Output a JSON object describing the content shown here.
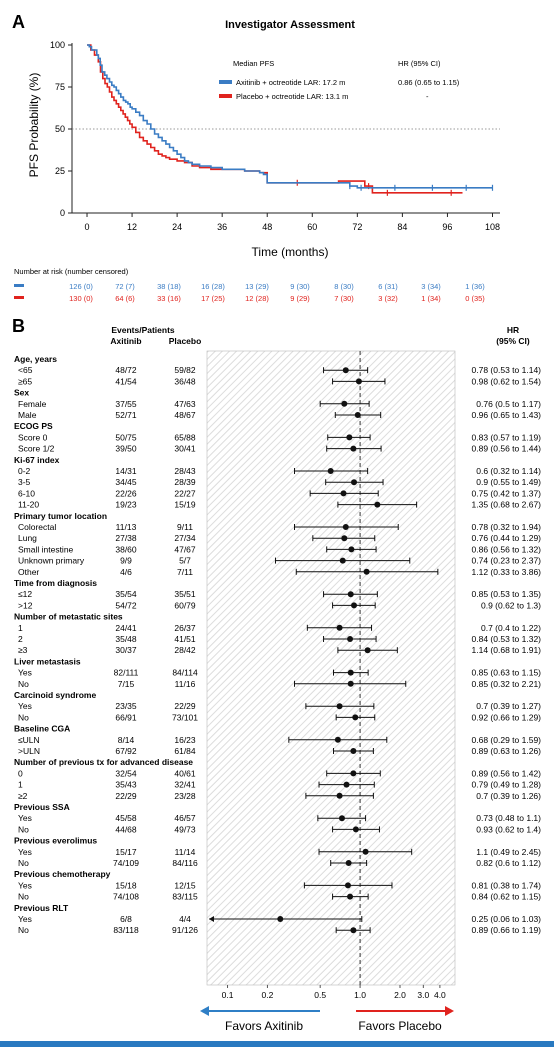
{
  "colors": {
    "axitinib": "#3a7cc4",
    "placebo": "#e0231e",
    "hatch": "#dddddd",
    "bottom_bar": "#2979c0"
  },
  "panel_a": {
    "letter": "A",
    "title": "Investigator Assessment",
    "ylabel": "PFS Probability (%)",
    "xlabel": "Time (months)",
    "legend_header": "Median PFS",
    "hr_header": "HR (95% CI)",
    "legend": [
      {
        "label": "Axitinib + octreotide LAR: 17.2 m",
        "hr": "0.86 (0.65 to 1.15)"
      },
      {
        "label": "Placebo + octreotide LAR: 13.1 m",
        "hr": "-"
      }
    ],
    "risk_title": "Number at risk (number censored)",
    "risk_axitinib": [
      "126 (0)",
      "72 (7)",
      "38 (18)",
      "16 (28)",
      "13 (29)",
      "9 (30)",
      "8 (30)",
      "6 (31)",
      "3 (34)",
      "1 (36)"
    ],
    "risk_placebo": [
      "130 (0)",
      "64 (6)",
      "33 (16)",
      "17 (25)",
      "12 (28)",
      "9 (29)",
      "7 (30)",
      "3 (32)",
      "1 (34)",
      "0 (35)"
    ]
  },
  "panel_b": {
    "letter": "B",
    "header_events": "Events/Patients",
    "header_axitinib": "Axitinib",
    "header_placebo": "Placebo",
    "header_hr": "HR",
    "header_ci": "(95% CI)",
    "favors_left": "Favors Axitinib",
    "favors_right": "Favors Placebo"
  },
  "chart_data": [
    {
      "type": "line",
      "title": "Investigator Assessment",
      "xlabel": "Time (months)",
      "ylabel": "PFS Probability (%)",
      "xlim": [
        -4,
        110
      ],
      "ylim": [
        0,
        100
      ],
      "x_ticks": [
        0,
        12,
        24,
        36,
        48,
        60,
        72,
        84,
        96,
        108
      ],
      "y_ticks": [
        0,
        25,
        50,
        75,
        100
      ],
      "reference_line": 50,
      "series": [
        {
          "name": "Axitinib + octreotide LAR: 17.2 m",
          "points": [
            [
              0,
              100
            ],
            [
              0.6,
              99
            ],
            [
              1.2,
              97
            ],
            [
              2,
              97
            ],
            [
              2.6,
              94
            ],
            [
              3,
              92
            ],
            [
              3.5,
              88
            ],
            [
              4,
              84
            ],
            [
              4.7,
              82
            ],
            [
              5.3,
              80
            ],
            [
              6,
              78
            ],
            [
              6.6,
              76
            ],
            [
              7.2,
              75
            ],
            [
              7.8,
              73
            ],
            [
              8.4,
              71
            ],
            [
              9,
              69
            ],
            [
              9.7,
              67
            ],
            [
              10.3,
              66
            ],
            [
              10.9,
              65
            ],
            [
              11.5,
              63
            ],
            [
              12,
              62
            ],
            [
              13,
              60
            ],
            [
              14,
              58
            ],
            [
              15,
              55
            ],
            [
              16,
              53
            ],
            [
              17,
              50
            ],
            [
              18,
              47
            ],
            [
              19,
              45
            ],
            [
              20,
              43
            ],
            [
              21,
              41
            ],
            [
              22,
              39
            ],
            [
              23,
              37
            ],
            [
              24,
              35
            ],
            [
              25,
              33
            ],
            [
              26,
              31
            ],
            [
              27,
              30
            ],
            [
              28,
              29
            ],
            [
              30,
              28
            ],
            [
              33,
              27
            ],
            [
              36,
              26
            ],
            [
              42,
              25
            ],
            [
              46,
              24
            ],
            [
              47,
              23
            ],
            [
              48,
              18
            ],
            [
              56,
              18
            ],
            [
              68,
              18
            ],
            [
              70,
              16
            ],
            [
              72,
              15
            ],
            [
              108,
              15
            ]
          ],
          "censor_times": [
            70,
            73,
            82,
            92,
            101,
            108
          ]
        },
        {
          "name": "Placebo + octreotide LAR: 13.1 m",
          "points": [
            [
              0,
              100
            ],
            [
              1,
              97
            ],
            [
              2,
              94
            ],
            [
              3,
              90
            ],
            [
              3.6,
              84
            ],
            [
              4.2,
              80
            ],
            [
              4.8,
              77
            ],
            [
              5.4,
              75
            ],
            [
              6,
              72
            ],
            [
              6.6,
              69
            ],
            [
              7.2,
              67
            ],
            [
              7.8,
              65
            ],
            [
              8.4,
              63
            ],
            [
              9,
              61
            ],
            [
              9.6,
              59
            ],
            [
              10.2,
              57
            ],
            [
              10.8,
              55
            ],
            [
              11.4,
              53
            ],
            [
              12,
              51
            ],
            [
              13,
              48
            ],
            [
              14,
              45
            ],
            [
              15,
              43
            ],
            [
              16,
              41
            ],
            [
              17,
              39
            ],
            [
              18,
              37
            ],
            [
              19,
              35
            ],
            [
              20,
              34
            ],
            [
              21,
              33
            ],
            [
              22,
              32
            ],
            [
              24,
              31
            ],
            [
              26,
              30
            ],
            [
              28,
              28
            ],
            [
              30,
              27
            ],
            [
              33,
              26
            ],
            [
              36,
              26
            ],
            [
              42,
              25
            ],
            [
              46,
              24
            ],
            [
              48,
              18
            ],
            [
              60,
              18
            ],
            [
              66,
              18
            ],
            [
              67,
              19
            ],
            [
              72,
              19
            ],
            [
              74,
              16
            ],
            [
              76,
              12
            ],
            [
              100,
              12
            ]
          ],
          "censor_times": [
            56,
            75,
            80,
            97
          ]
        }
      ]
    },
    {
      "type": "forest",
      "xlabel": "",
      "x_scale": "log",
      "x_ticks": [
        "0.1",
        "0.2",
        "0.5",
        "1.0",
        "2.0",
        "3.0",
        "4.0"
      ],
      "x_tick_values": [
        0.1,
        0.2,
        0.5,
        1.0,
        2.0,
        3.0,
        4.0
      ],
      "reference": 1.0,
      "rows": [
        {
          "kind": "header",
          "label": "Age, years"
        },
        {
          "kind": "item",
          "label": "<65",
          "axitinib": "48/72",
          "placebo": "59/82",
          "hr_text": "0.78 (0.53 to 1.14)",
          "hr": 0.78,
          "lo": 0.53,
          "hi": 1.14
        },
        {
          "kind": "item",
          "label": "≥65",
          "axitinib": "41/54",
          "placebo": "36/48",
          "hr_text": "0.98 (0.62 to 1.54)",
          "hr": 0.98,
          "lo": 0.62,
          "hi": 1.54
        },
        {
          "kind": "header",
          "label": "Sex"
        },
        {
          "kind": "item",
          "label": "Female",
          "axitinib": "37/55",
          "placebo": "47/63",
          "hr_text": "0.76 (0.5 to 1.17)",
          "hr": 0.76,
          "lo": 0.5,
          "hi": 1.17
        },
        {
          "kind": "item",
          "label": "Male",
          "axitinib": "52/71",
          "placebo": "48/67",
          "hr_text": "0.96 (0.65 to 1.43)",
          "hr": 0.96,
          "lo": 0.65,
          "hi": 1.43
        },
        {
          "kind": "header",
          "label": "ECOG PS"
        },
        {
          "kind": "item",
          "label": "Score 0",
          "axitinib": "50/75",
          "placebo": "65/88",
          "hr_text": "0.83 (0.57 to 1.19)",
          "hr": 0.83,
          "lo": 0.57,
          "hi": 1.19
        },
        {
          "kind": "item",
          "label": "Score 1/2",
          "axitinib": "39/50",
          "placebo": "30/41",
          "hr_text": "0.89 (0.56 to 1.44)",
          "hr": 0.89,
          "lo": 0.56,
          "hi": 1.44
        },
        {
          "kind": "header",
          "label": "Ki-67 index"
        },
        {
          "kind": "item",
          "label": "0-2",
          "axitinib": "14/31",
          "placebo": "28/43",
          "hr_text": "0.6 (0.32 to 1.14)",
          "hr": 0.6,
          "lo": 0.32,
          "hi": 1.14
        },
        {
          "kind": "item",
          "label": "3-5",
          "axitinib": "34/45",
          "placebo": "28/39",
          "hr_text": "0.9 (0.55 to 1.49)",
          "hr": 0.9,
          "lo": 0.55,
          "hi": 1.49
        },
        {
          "kind": "item",
          "label": "6-10",
          "axitinib": "22/26",
          "placebo": "22/27",
          "hr_text": "0.75 (0.42 to 1.37)",
          "hr": 0.75,
          "lo": 0.42,
          "hi": 1.37
        },
        {
          "kind": "item",
          "label": "11-20",
          "axitinib": "19/23",
          "placebo": "15/19",
          "hr_text": "1.35 (0.68 to 2.67)",
          "hr": 1.35,
          "lo": 0.68,
          "hi": 2.67
        },
        {
          "kind": "header",
          "label": "Primary tumor location"
        },
        {
          "kind": "item",
          "label": "Colorectal",
          "axitinib": "11/13",
          "placebo": "9/11",
          "hr_text": "0.78 (0.32 to 1.94)",
          "hr": 0.78,
          "lo": 0.32,
          "hi": 1.94
        },
        {
          "kind": "item",
          "label": "Lung",
          "axitinib": "27/38",
          "placebo": "27/34",
          "hr_text": "0.76 (0.44 to 1.29)",
          "hr": 0.76,
          "lo": 0.44,
          "hi": 1.29
        },
        {
          "kind": "item",
          "label": "Small intestine",
          "axitinib": "38/60",
          "placebo": "47/67",
          "hr_text": "0.86 (0.56 to 1.32)",
          "hr": 0.86,
          "lo": 0.56,
          "hi": 1.32
        },
        {
          "kind": "item",
          "label": "Unknown primary",
          "axitinib": "9/9",
          "placebo": "5/7",
          "hr_text": "0.74 (0.23 to 2.37)",
          "hr": 0.74,
          "lo": 0.23,
          "hi": 2.37
        },
        {
          "kind": "item",
          "label": "Other",
          "axitinib": "4/6",
          "placebo": "7/11",
          "hr_text": "1.12 (0.33 to 3.86)",
          "hr": 1.12,
          "lo": 0.33,
          "hi": 3.86
        },
        {
          "kind": "header",
          "label": "Time from diagnosis"
        },
        {
          "kind": "item",
          "label": "≤12",
          "axitinib": "35/54",
          "placebo": "35/51",
          "hr_text": "0.85 (0.53 to 1.35)",
          "hr": 0.85,
          "lo": 0.53,
          "hi": 1.35
        },
        {
          "kind": "item",
          "label": ">12",
          "axitinib": "54/72",
          "placebo": "60/79",
          "hr_text": "0.9 (0.62 to 1.3)",
          "hr": 0.9,
          "lo": 0.62,
          "hi": 1.3
        },
        {
          "kind": "header",
          "label": "Number of metastatic sites"
        },
        {
          "kind": "item",
          "label": "1",
          "axitinib": "24/41",
          "placebo": "26/37",
          "hr_text": "0.7 (0.4 to 1.22)",
          "hr": 0.7,
          "lo": 0.4,
          "hi": 1.22
        },
        {
          "kind": "item",
          "label": "2",
          "axitinib": "35/48",
          "placebo": "41/51",
          "hr_text": "0.84 (0.53 to 1.32)",
          "hr": 0.84,
          "lo": 0.53,
          "hi": 1.32
        },
        {
          "kind": "item",
          "label": "≥3",
          "axitinib": "30/37",
          "placebo": "28/42",
          "hr_text": "1.14 (0.68 to 1.91)",
          "hr": 1.14,
          "lo": 0.68,
          "hi": 1.91
        },
        {
          "kind": "header",
          "label": "Liver metastasis"
        },
        {
          "kind": "item",
          "label": "Yes",
          "axitinib": "82/111",
          "placebo": "84/114",
          "hr_text": "0.85 (0.63 to 1.15)",
          "hr": 0.85,
          "lo": 0.63,
          "hi": 1.15
        },
        {
          "kind": "item",
          "label": "No",
          "axitinib": "7/15",
          "placebo": "11/16",
          "hr_text": "0.85 (0.32 to 2.21)",
          "hr": 0.85,
          "lo": 0.32,
          "hi": 2.21
        },
        {
          "kind": "header",
          "label": "Carcinoid syndrome"
        },
        {
          "kind": "item",
          "label": "Yes",
          "axitinib": "23/35",
          "placebo": "22/29",
          "hr_text": "0.7 (0.39 to 1.27)",
          "hr": 0.7,
          "lo": 0.39,
          "hi": 1.27
        },
        {
          "kind": "item",
          "label": "No",
          "axitinib": "66/91",
          "placebo": "73/101",
          "hr_text": "0.92 (0.66 to 1.29)",
          "hr": 0.92,
          "lo": 0.66,
          "hi": 1.29
        },
        {
          "kind": "header",
          "label": "Baseline CGA"
        },
        {
          "kind": "item",
          "label": "≤ULN",
          "axitinib": "8/14",
          "placebo": "16/23",
          "hr_text": "0.68 (0.29 to 1.59)",
          "hr": 0.68,
          "lo": 0.29,
          "hi": 1.59
        },
        {
          "kind": "item",
          "label": ">ULN",
          "axitinib": "67/92",
          "placebo": "61/84",
          "hr_text": "0.89 (0.63 to 1.26)",
          "hr": 0.89,
          "lo": 0.63,
          "hi": 1.26
        },
        {
          "kind": "header",
          "label": "Number of previous tx for advanced disease"
        },
        {
          "kind": "item",
          "label": "0",
          "axitinib": "32/54",
          "placebo": "40/61",
          "hr_text": "0.89 (0.56 to 1.42)",
          "hr": 0.89,
          "lo": 0.56,
          "hi": 1.42
        },
        {
          "kind": "item",
          "label": "1",
          "axitinib": "35/43",
          "placebo": "32/41",
          "hr_text": "0.79 (0.49 to 1.28)",
          "hr": 0.79,
          "lo": 0.49,
          "hi": 1.28
        },
        {
          "kind": "item",
          "label": "≥2",
          "axitinib": "22/29",
          "placebo": "23/28",
          "hr_text": "0.7 (0.39 to 1.26)",
          "hr": 0.7,
          "lo": 0.39,
          "hi": 1.26
        },
        {
          "kind": "header",
          "label": "Previous SSA"
        },
        {
          "kind": "item",
          "label": "Yes",
          "axitinib": "45/58",
          "placebo": "46/57",
          "hr_text": "0.73 (0.48 to 1.1)",
          "hr": 0.73,
          "lo": 0.48,
          "hi": 1.1
        },
        {
          "kind": "item",
          "label": "No",
          "axitinib": "44/68",
          "placebo": "49/73",
          "hr_text": "0.93 (0.62 to 1.4)",
          "hr": 0.93,
          "lo": 0.62,
          "hi": 1.4
        },
        {
          "kind": "header",
          "label": "Previous everolimus"
        },
        {
          "kind": "item",
          "label": "Yes",
          "axitinib": "15/17",
          "placebo": "11/14",
          "hr_text": "1.1 (0.49 to 2.45)",
          "hr": 1.1,
          "lo": 0.49,
          "hi": 2.45
        },
        {
          "kind": "item",
          "label": "No",
          "axitinib": "74/109",
          "placebo": "84/116",
          "hr_text": "0.82 (0.6 to 1.12)",
          "hr": 0.82,
          "lo": 0.6,
          "hi": 1.12
        },
        {
          "kind": "header",
          "label": "Previous chemotherapy"
        },
        {
          "kind": "item",
          "label": "Yes",
          "axitinib": "15/18",
          "placebo": "12/15",
          "hr_text": "0.81 (0.38 to 1.74)",
          "hr": 0.81,
          "lo": 0.38,
          "hi": 1.74
        },
        {
          "kind": "item",
          "label": "No",
          "axitinib": "74/108",
          "placebo": "83/115",
          "hr_text": "0.84 (0.62 to 1.15)",
          "hr": 0.84,
          "lo": 0.62,
          "hi": 1.15
        },
        {
          "kind": "header",
          "label": "Previous RLT"
        },
        {
          "kind": "item",
          "label": "Yes",
          "axitinib": "6/8",
          "placebo": "4/4",
          "hr_text": "0.25 (0.06 to 1.03)",
          "hr": 0.25,
          "lo": 0.06,
          "hi": 1.03,
          "arrow_left": true
        },
        {
          "kind": "item",
          "label": "No",
          "axitinib": "83/118",
          "placebo": "91/126",
          "hr_text": "0.89 (0.66 to 1.19)",
          "hr": 0.89,
          "lo": 0.66,
          "hi": 1.19
        }
      ]
    }
  ]
}
